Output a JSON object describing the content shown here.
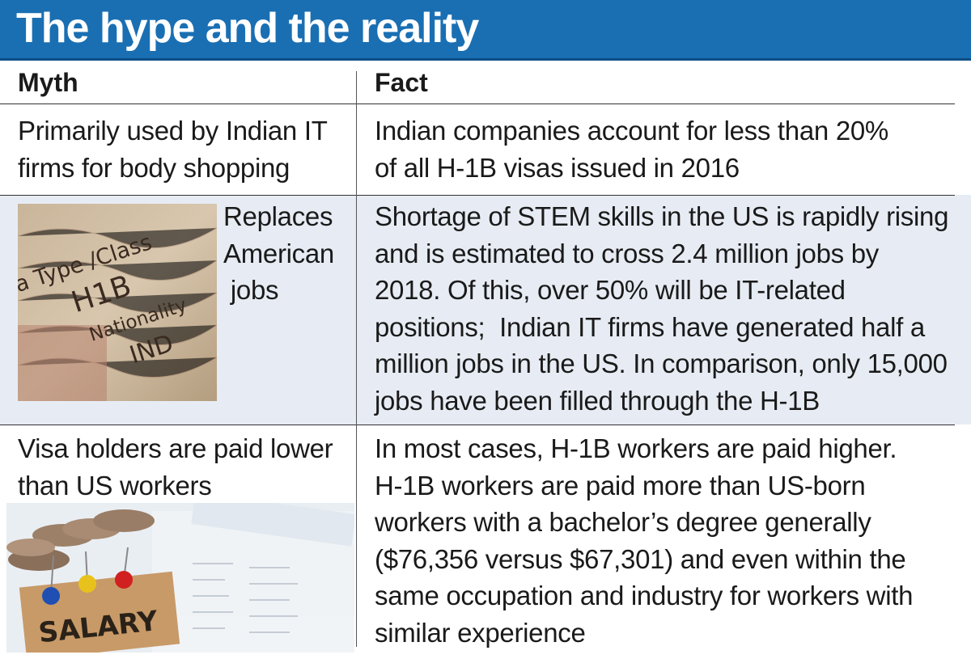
{
  "title": "The hype and the reality",
  "columns": {
    "myth": "Myth",
    "fact": "Fact"
  },
  "rows": [
    {
      "myth_lines": [
        "Primarily used by Indian IT",
        "firms for body shopping"
      ],
      "fact_lines": [
        "Indian companies account for less than 20%",
        "of all H-1B visas issued in 2016"
      ]
    },
    {
      "myth_lines": [
        "Replaces",
        "American",
        " jobs"
      ],
      "fact_lines": [
        "Shortage of STEM skills in the US is rapidly rising",
        "and is estimated to cross 2.4 million jobs by",
        "2018. Of this, over 50% will be IT-related",
        "positions;  Indian IT firms have generated half a",
        "million jobs in the US. In comparison, only 15,000",
        "jobs have been filled through the H-1B"
      ],
      "image": {
        "icon": "visa-stamp-image",
        "text_lines": [
          "a Type /Class",
          "H1B",
          "Nationality",
          "IND"
        ]
      }
    },
    {
      "myth_lines": [
        "Visa holders are paid lower",
        "than US workers"
      ],
      "fact_lines": [
        "In most cases, H-1B workers are paid higher.",
        "H-1B workers are paid more than US-born",
        "workers with a bachelor’s degree generally",
        "($76,356 versus $67,301) and even within the",
        "same occupation and industry for workers with",
        "similar experience"
      ],
      "image": {
        "icon": "salary-coins-image",
        "label": "SALARY"
      }
    }
  ],
  "colors": {
    "header": "#1a6fb3",
    "band": "#e7ecf4",
    "text": "#1a1a1a"
  }
}
